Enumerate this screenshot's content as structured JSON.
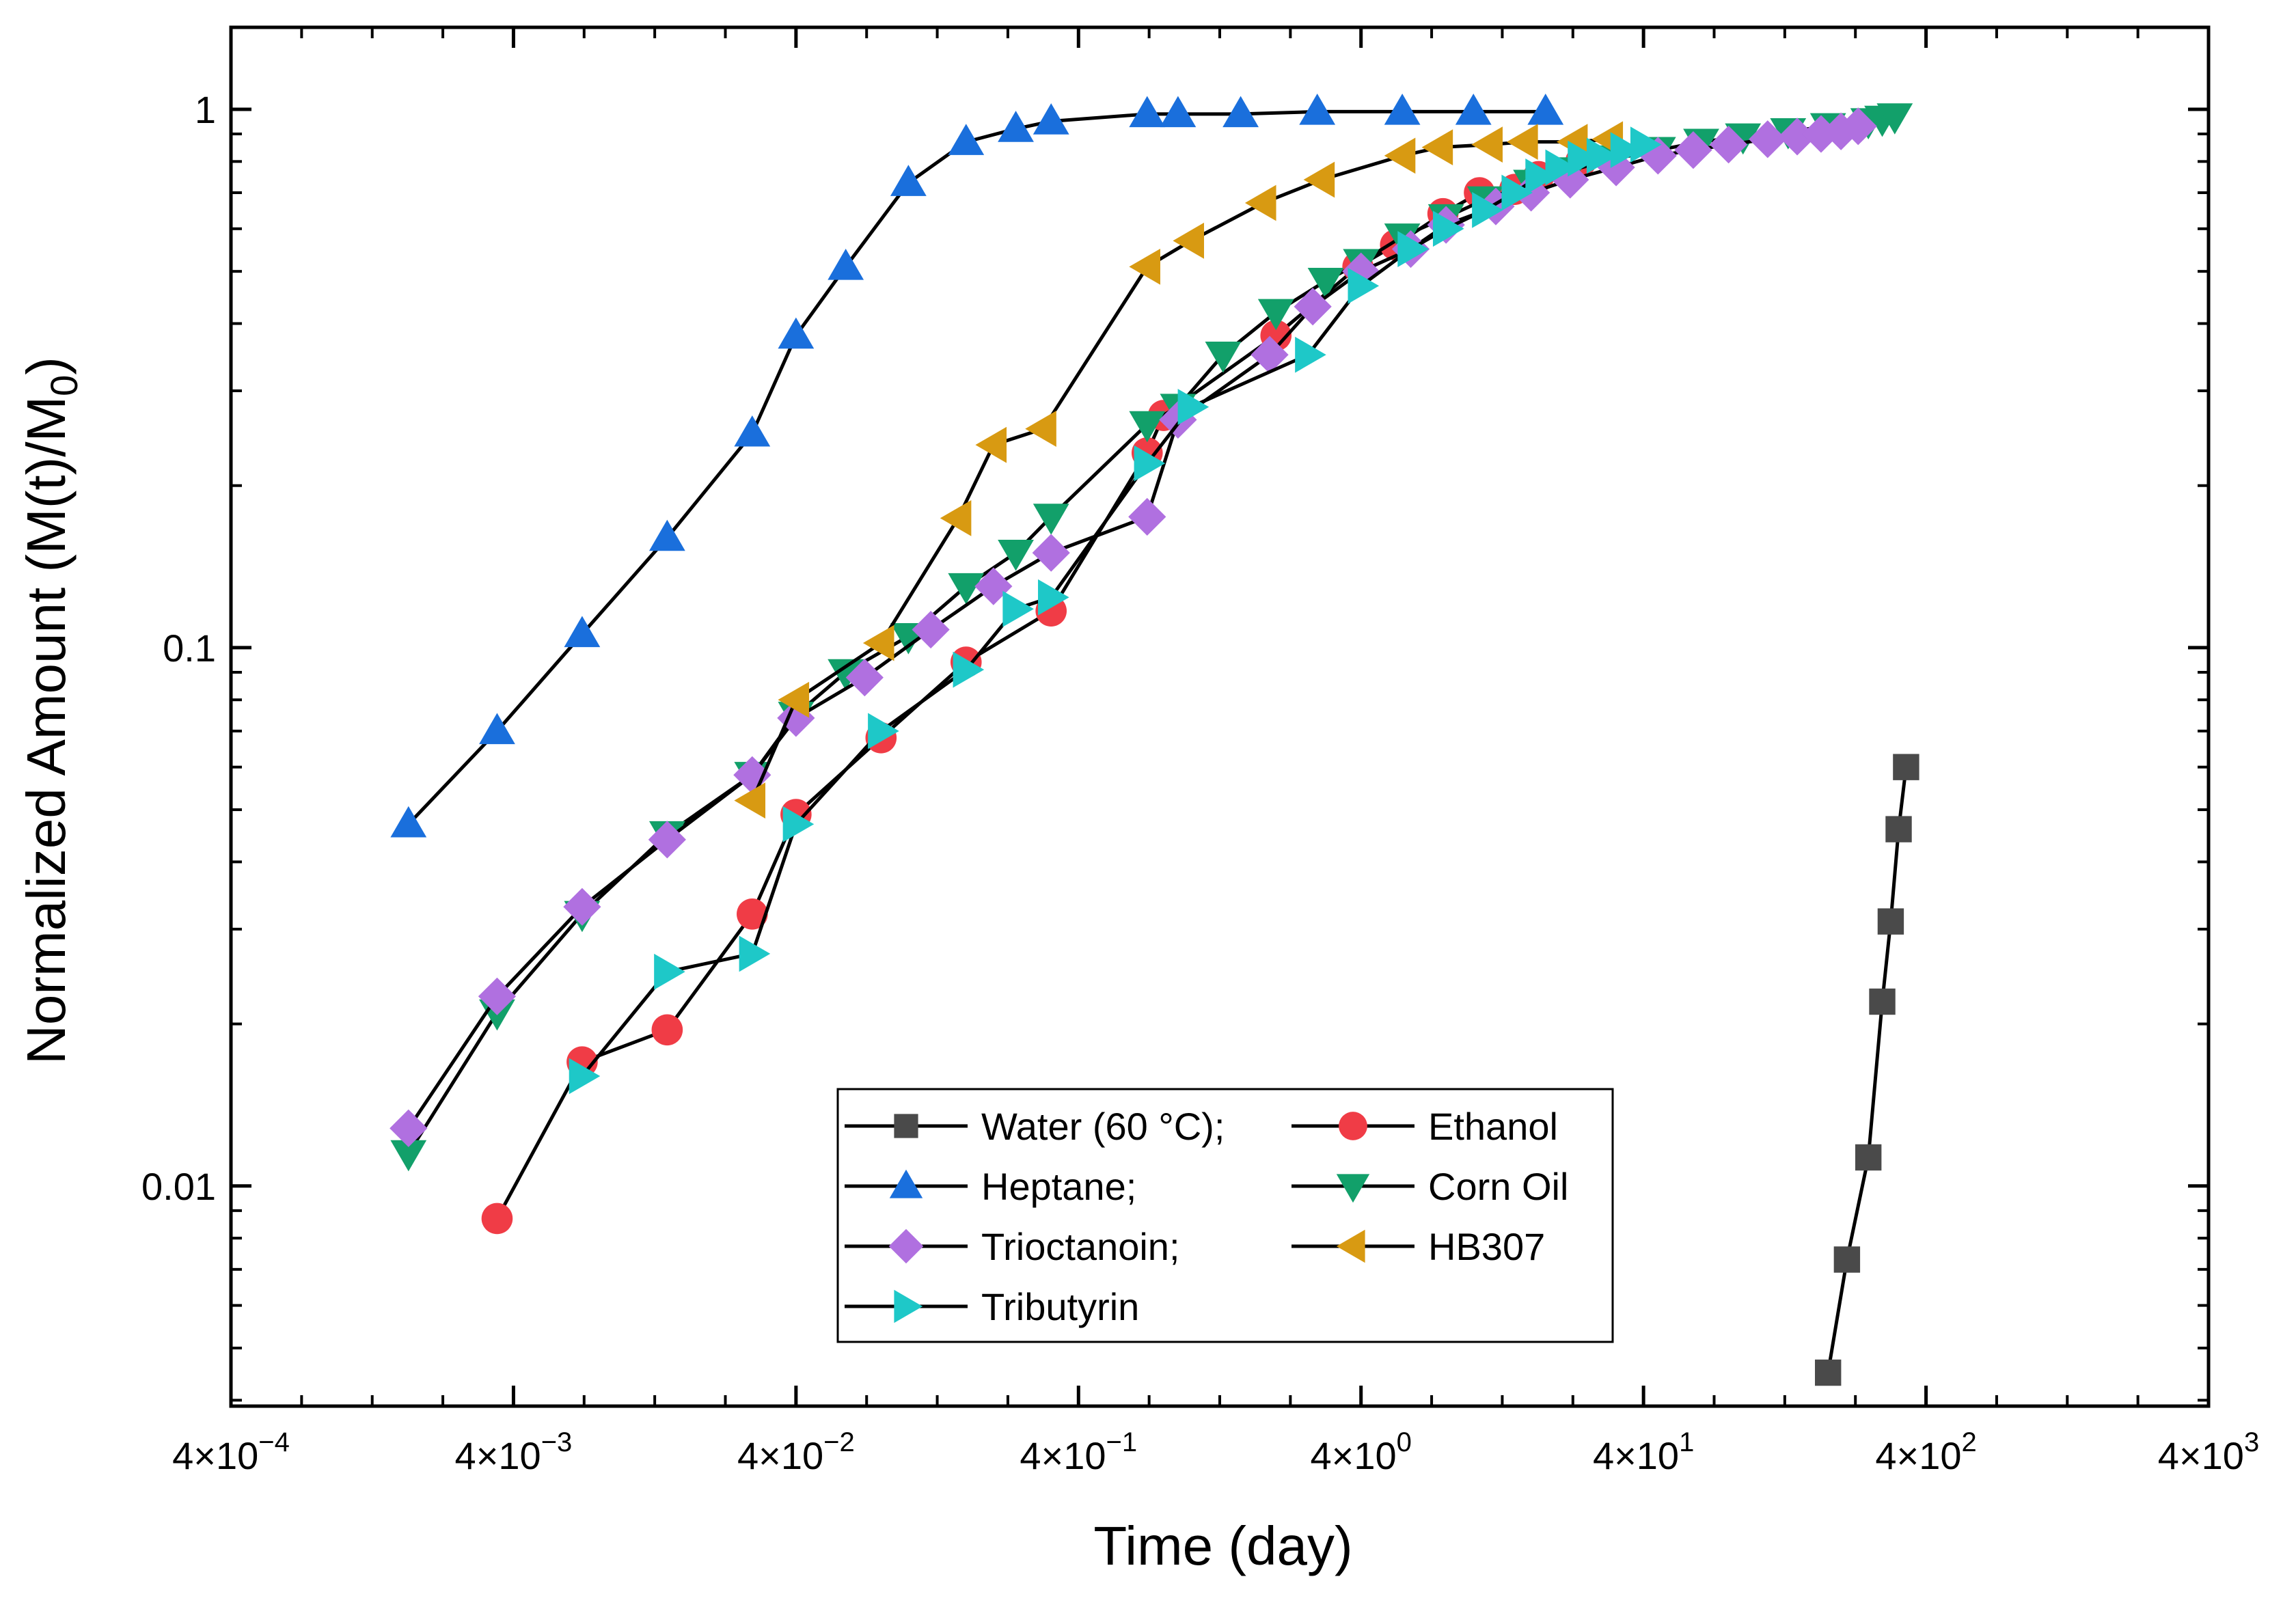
{
  "chart_data": {
    "type": "scatter",
    "title": "",
    "xlabel": "Time (day)",
    "ylabel_parts": [
      "Normalized Amount (M(t)/M",
      "0",
      ")"
    ],
    "x_scale": "log",
    "y_scale": "log",
    "xlim": [
      0.0004,
      4000
    ],
    "ylim": [
      0.0039,
      1.42
    ],
    "x_ticks": [
      {
        "value": 0.0004,
        "mantissa": "4×10",
        "exp": "−4"
      },
      {
        "value": 0.004,
        "mantissa": "4×10",
        "exp": "−3"
      },
      {
        "value": 0.04,
        "mantissa": "4×10",
        "exp": "−2"
      },
      {
        "value": 0.4,
        "mantissa": "4×10",
        "exp": "−1"
      },
      {
        "value": 4,
        "mantissa": "4×10",
        "exp": "0"
      },
      {
        "value": 40,
        "mantissa": "4×10",
        "exp": "1"
      },
      {
        "value": 400,
        "mantissa": "4×10",
        "exp": "2"
      },
      {
        "value": 4000,
        "mantissa": "4×10",
        "exp": "3"
      }
    ],
    "y_ticks": [
      {
        "value": 0.01,
        "label": "0.01"
      },
      {
        "value": 0.1,
        "label": "0.1"
      },
      {
        "value": 1,
        "label": "1"
      }
    ],
    "grid": false,
    "legend_position": "bottom-center",
    "legend_entries": [
      "Water (60 °C);",
      "Ethanol",
      "Heptane;",
      "Corn Oil",
      "Trioctanoin;",
      "HB307",
      "Tributyrin"
    ],
    "series": [
      {
        "name": "Water (60 °C);",
        "marker": "square",
        "color": "#4a4a4a",
        "x": [
          180,
          210,
          250,
          280,
          300,
          320,
          340
        ],
        "y": [
          0.0045,
          0.0073,
          0.0113,
          0.022,
          0.031,
          0.046,
          0.06
        ]
      },
      {
        "name": "Ethanol",
        "marker": "circle",
        "color": "#f03c46",
        "x": [
          0.0035,
          0.007,
          0.014,
          0.028,
          0.04,
          0.08,
          0.16,
          0.32,
          0.7,
          0.8,
          2,
          3.9,
          5.3,
          7.8,
          10.5,
          14,
          17,
          24
        ],
        "y": [
          0.0087,
          0.017,
          0.0195,
          0.032,
          0.049,
          0.068,
          0.094,
          0.117,
          0.23,
          0.27,
          0.38,
          0.51,
          0.56,
          0.64,
          0.7,
          0.71,
          0.75,
          0.8
        ]
      },
      {
        "name": "Heptane;",
        "marker": "triangle-up",
        "color": "#1a6fdc",
        "x": [
          0.0017,
          0.0035,
          0.007,
          0.014,
          0.028,
          0.04,
          0.06,
          0.1,
          0.16,
          0.24,
          0.32,
          0.7,
          0.9,
          1.5,
          2.8,
          5.6,
          10,
          18
        ],
        "y": [
          0.047,
          0.07,
          0.106,
          0.16,
          0.25,
          0.38,
          0.51,
          0.73,
          0.87,
          0.92,
          0.95,
          0.98,
          0.98,
          0.98,
          0.99,
          0.99,
          0.99,
          0.99
        ]
      },
      {
        "name": "Corn Oil",
        "marker": "triangle-down",
        "color": "#12a06a",
        "x": [
          0.0017,
          0.0035,
          0.007,
          0.014,
          0.028,
          0.04,
          0.06,
          0.1,
          0.16,
          0.24,
          0.32,
          0.7,
          0.9,
          1.3,
          2,
          3,
          4,
          5.6,
          8,
          11,
          16,
          22,
          32,
          45,
          64,
          90,
          130,
          180,
          250,
          280,
          310
        ],
        "y": [
          0.0115,
          0.021,
          0.032,
          0.045,
          0.058,
          0.075,
          0.09,
          0.105,
          0.13,
          0.15,
          0.175,
          0.26,
          0.28,
          0.35,
          0.42,
          0.48,
          0.52,
          0.58,
          0.63,
          0.68,
          0.73,
          0.77,
          0.81,
          0.84,
          0.87,
          0.89,
          0.91,
          0.93,
          0.95,
          0.96,
          0.97
        ]
      },
      {
        "name": "Trioctanoin;",
        "marker": "diamond",
        "color": "#b070e0",
        "x": [
          0.0017,
          0.0035,
          0.007,
          0.014,
          0.028,
          0.04,
          0.07,
          0.12,
          0.2,
          0.32,
          0.7,
          0.9,
          1.9,
          2.7,
          4,
          6,
          8,
          12,
          16,
          22,
          32,
          45,
          60,
          80,
          110,
          140,
          170,
          200,
          230
        ],
        "y": [
          0.0128,
          0.0225,
          0.033,
          0.044,
          0.058,
          0.074,
          0.088,
          0.108,
          0.13,
          0.15,
          0.175,
          0.265,
          0.35,
          0.43,
          0.5,
          0.55,
          0.61,
          0.66,
          0.7,
          0.74,
          0.78,
          0.82,
          0.84,
          0.86,
          0.88,
          0.89,
          0.9,
          0.91,
          0.93
        ]
      },
      {
        "name": "HB307",
        "marker": "triangle-left",
        "color": "#d89a12",
        "x": [
          0.028,
          0.04,
          0.08,
          0.15,
          0.2,
          0.3,
          0.7,
          1.0,
          1.8,
          2.9,
          5.6,
          7.6,
          11.4,
          15.2,
          22.8,
          30.4
        ],
        "y": [
          0.052,
          0.08,
          0.102,
          0.174,
          0.238,
          0.255,
          0.51,
          0.57,
          0.67,
          0.74,
          0.82,
          0.85,
          0.86,
          0.87,
          0.87,
          0.88
        ]
      },
      {
        "name": "Tributyrin",
        "marker": "triangle-right",
        "color": "#1ec8c8",
        "x": [
          0.007,
          0.014,
          0.028,
          0.04,
          0.08,
          0.16,
          0.24,
          0.32,
          0.7,
          1.0,
          2.6,
          4.0,
          6.0,
          8.0,
          11,
          14,
          17,
          20,
          24,
          28,
          34,
          40
        ],
        "y": [
          0.016,
          0.025,
          0.027,
          0.047,
          0.07,
          0.091,
          0.118,
          0.124,
          0.22,
          0.28,
          0.35,
          0.47,
          0.55,
          0.6,
          0.65,
          0.7,
          0.75,
          0.78,
          0.81,
          0.82,
          0.84,
          0.86
        ]
      }
    ]
  }
}
